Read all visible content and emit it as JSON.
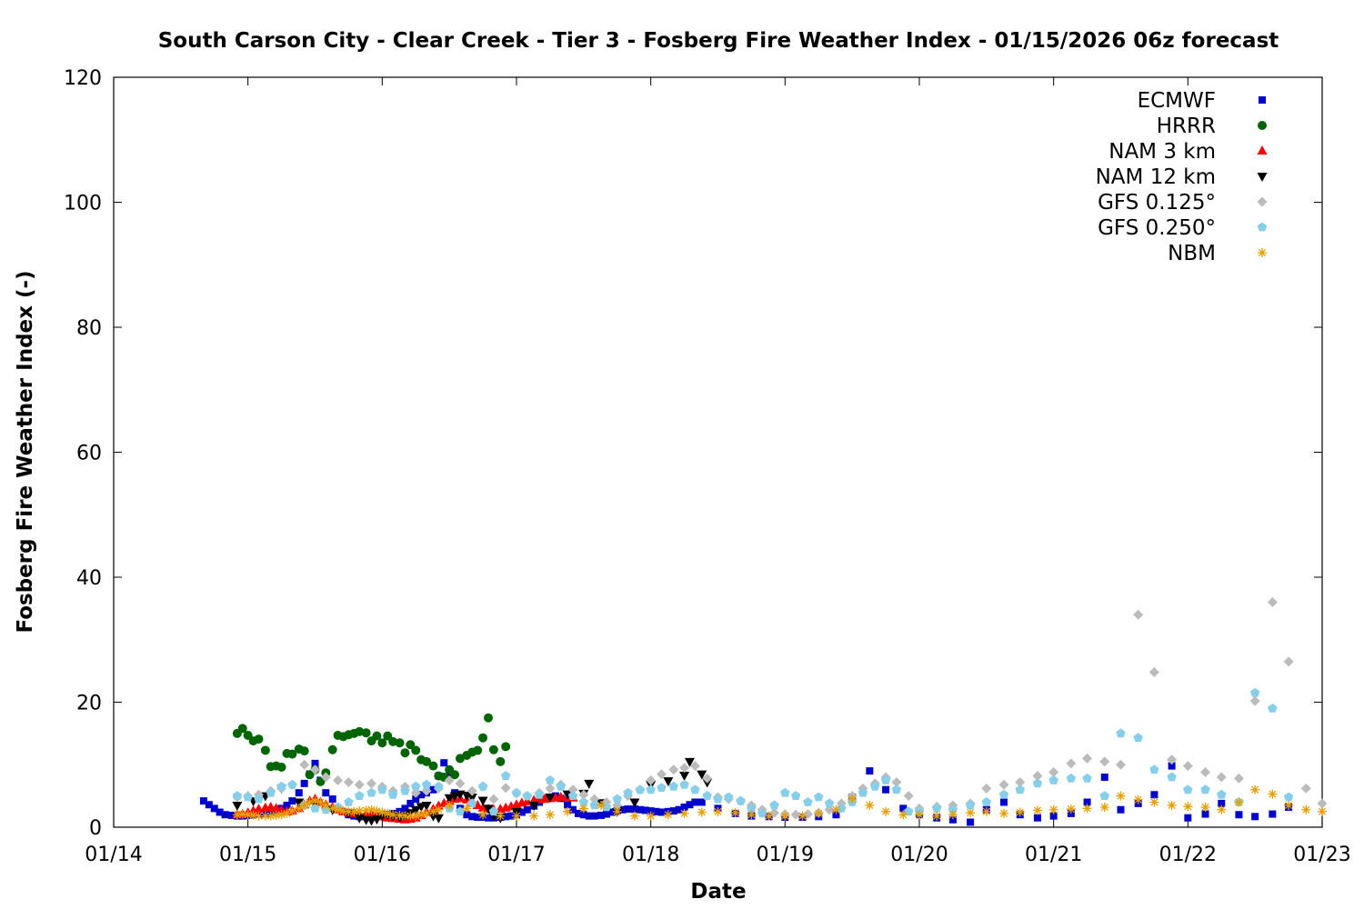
{
  "chart_data": {
    "type": "scatter",
    "title": "South Carson City - Clear Creek - Tier 3 - Fosberg Fire Weather Index - 01/15/2026 06z forecast",
    "xlabel": "Date",
    "ylabel": "Fosberg Fire Weather Index (-)",
    "xlim": [
      "01/14 00z",
      "01/23 00z"
    ],
    "ylim": [
      0,
      120
    ],
    "x_ticks": [
      "01/14",
      "01/15",
      "01/16",
      "01/17",
      "01/18",
      "01/19",
      "01/20",
      "01/21",
      "01/22",
      "01/23"
    ],
    "y_ticks": [
      0,
      20,
      40,
      60,
      80,
      100,
      120
    ],
    "x_unit": "day offset from 01/14 00z",
    "grid": false,
    "legend_position": "top-right",
    "series": [
      {
        "name": "ECMWF",
        "color": "#0000cc",
        "marker": "square",
        "x": [
          0.67,
          0.71,
          0.75,
          0.79,
          0.83,
          0.88,
          0.92,
          0.96,
          1.0,
          1.04,
          1.08,
          1.13,
          1.17,
          1.21,
          1.25,
          1.29,
          1.33,
          1.38,
          1.42,
          1.46,
          1.5,
          1.54,
          1.58,
          1.63,
          1.67,
          1.71,
          1.75,
          1.79,
          1.83,
          1.88,
          1.92,
          1.96,
          2.0,
          2.04,
          2.08,
          2.13,
          2.17,
          2.21,
          2.25,
          2.29,
          2.33,
          2.38,
          2.42,
          2.46,
          2.5,
          2.54,
          2.58,
          2.63,
          2.67,
          2.71,
          2.75,
          2.79,
          2.83,
          2.88,
          2.92,
          2.96,
          3.0,
          3.04,
          3.08,
          3.13,
          3.17,
          3.21,
          3.25,
          3.29,
          3.33,
          3.38,
          3.42,
          3.46,
          3.5,
          3.54,
          3.58,
          3.63,
          3.67,
          3.71,
          3.75,
          3.79,
          3.83,
          3.88,
          3.92,
          3.96,
          4.0,
          4.04,
          4.08,
          4.13,
          4.17,
          4.21,
          4.25,
          4.29,
          4.33,
          4.38,
          4.5,
          4.63,
          4.75,
          4.88,
          5.0,
          5.13,
          5.25,
          5.38,
          5.5,
          5.63,
          5.75,
          5.88,
          6.0,
          6.13,
          6.25,
          6.38,
          6.5,
          6.63,
          6.75,
          6.88,
          7.0,
          7.13,
          7.25,
          7.38,
          7.5,
          7.63,
          7.75,
          7.88,
          8.0,
          8.13,
          8.25,
          8.38,
          8.5,
          8.63,
          8.75
        ],
        "y": [
          4.2,
          3.6,
          3.0,
          2.4,
          2.0,
          1.9,
          1.8,
          1.8,
          1.9,
          2.0,
          2.1,
          2.2,
          2.4,
          2.7,
          3.0,
          3.5,
          4.2,
          5.5,
          7.0,
          8.5,
          10.2,
          7.5,
          5.5,
          4.5,
          3.0,
          2.5,
          2.0,
          1.8,
          1.7,
          1.7,
          1.7,
          1.8,
          1.9,
          2.0,
          2.2,
          2.5,
          3.0,
          3.8,
          4.5,
          5.2,
          5.5,
          6.0,
          8.2,
          10.3,
          8.5,
          5.5,
          3.0,
          2.0,
          1.7,
          1.6,
          1.6,
          1.5,
          1.5,
          1.6,
          1.7,
          1.8,
          2.0,
          2.4,
          2.8,
          3.4,
          4.0,
          4.5,
          4.8,
          5.0,
          4.6,
          3.6,
          2.8,
          2.2,
          2.0,
          1.8,
          1.8,
          1.9,
          2.1,
          2.4,
          2.6,
          2.8,
          2.9,
          2.9,
          2.8,
          2.7,
          2.6,
          2.5,
          2.4,
          2.5,
          2.6,
          2.8,
          3.2,
          3.6,
          4.0,
          4.0,
          3.0,
          2.2,
          1.8,
          1.7,
          1.6,
          1.6,
          1.7,
          2.0,
          4.8,
          9.0,
          6.0,
          3.0,
          2.0,
          1.5,
          1.2,
          0.8,
          2.8,
          4.0,
          2.0,
          1.5,
          1.8,
          2.2,
          4.0,
          8.0,
          2.8,
          3.8,
          5.2,
          9.8,
          1.5,
          2.1,
          3.8,
          2.0,
          1.7,
          2.1,
          3.2
        ]
      },
      {
        "name": "HRRR",
        "color": "#006400",
        "marker": "circle",
        "x": [
          0.92,
          0.96,
          1.0,
          1.04,
          1.08,
          1.13,
          1.17,
          1.21,
          1.25,
          1.29,
          1.33,
          1.38,
          1.42,
          1.46,
          1.5,
          1.54,
          1.58,
          1.63,
          1.67,
          1.71,
          1.75,
          1.79,
          1.83,
          1.88,
          1.92,
          1.96,
          2.0,
          2.04,
          2.08,
          2.13,
          2.17,
          2.21,
          2.25,
          2.29,
          2.33,
          2.38,
          2.42,
          2.46,
          2.5,
          2.54,
          2.58,
          2.63,
          2.67,
          2.71,
          2.75,
          2.79,
          2.83,
          2.88,
          2.92
        ],
        "y": [
          15.0,
          15.8,
          14.7,
          13.8,
          14.1,
          12.3,
          9.7,
          9.8,
          9.6,
          11.8,
          11.7,
          12.5,
          12.2,
          8.4,
          9.2,
          7.3,
          8.7,
          12.4,
          14.7,
          14.5,
          14.8,
          15.0,
          15.3,
          15.1,
          13.8,
          14.6,
          13.5,
          14.6,
          13.7,
          13.5,
          11.9,
          13.2,
          12.3,
          10.8,
          10.5,
          9.8,
          8.2,
          8.0,
          9.2,
          8.4,
          11.0,
          11.5,
          12.0,
          12.3,
          14.3,
          17.5,
          12.4,
          10.5,
          12.9
        ]
      },
      {
        "name": "NAM 3 km",
        "color": "#ff0000",
        "marker": "triangle-up",
        "x": [
          0.92,
          0.96,
          1.0,
          1.04,
          1.08,
          1.13,
          1.17,
          1.21,
          1.25,
          1.29,
          1.33,
          1.38,
          1.42,
          1.46,
          1.5,
          1.54,
          1.58,
          1.63,
          1.67,
          1.71,
          1.75,
          1.79,
          1.83,
          1.88,
          1.92,
          1.96,
          2.0,
          2.04,
          2.08,
          2.13,
          2.17,
          2.21,
          2.25,
          2.29,
          2.33,
          2.38,
          2.42,
          2.46,
          2.5,
          2.54,
          2.58,
          2.63,
          2.67,
          2.71,
          2.75,
          2.79,
          2.83,
          2.88,
          2.92,
          2.96,
          3.0,
          3.04,
          3.08,
          3.13,
          3.17,
          3.21,
          3.25,
          3.29,
          3.33,
          3.38,
          3.42
        ],
        "y": [
          2.0,
          2.1,
          2.3,
          2.6,
          2.9,
          3.1,
          3.2,
          3.0,
          2.7,
          2.5,
          2.6,
          3.0,
          3.6,
          4.2,
          4.5,
          4.0,
          3.6,
          3.2,
          2.8,
          2.5,
          2.3,
          2.2,
          2.1,
          2.1,
          2.0,
          1.9,
          1.7,
          1.5,
          1.4,
          1.3,
          1.2,
          1.3,
          1.5,
          1.9,
          2.4,
          2.9,
          3.4,
          3.8,
          4.2,
          4.5,
          4.6,
          4.4,
          4.0,
          3.5,
          3.1,
          2.9,
          2.8,
          2.9,
          3.1,
          3.3,
          3.6,
          3.9,
          4.1,
          4.3,
          4.4,
          4.5,
          4.6,
          4.7,
          4.8,
          4.8,
          4.7
        ]
      },
      {
        "name": "NAM 12 km",
        "color": "#000000",
        "marker": "triangle-down",
        "x": [
          0.92,
          1.04,
          1.13,
          1.25,
          1.38,
          1.5,
          1.63,
          1.75,
          1.83,
          1.88,
          1.92,
          1.96,
          2.0,
          2.04,
          2.08,
          2.13,
          2.17,
          2.21,
          2.25,
          2.29,
          2.33,
          2.38,
          2.42,
          2.5,
          2.54,
          2.58,
          2.63,
          2.67,
          2.75,
          2.79,
          2.83,
          2.88,
          3.0,
          3.13,
          3.25,
          3.38,
          3.5,
          3.54,
          3.63,
          3.75,
          3.88,
          4.0,
          4.13,
          4.25,
          4.29,
          4.38,
          4.42
        ],
        "y": [
          3.5,
          4.2,
          5.0,
          6.2,
          4.0,
          3.5,
          2.8,
          2.3,
          1.5,
          1.2,
          1.1,
          1.3,
          1.8,
          2.0,
          1.8,
          1.6,
          1.8,
          2.3,
          2.8,
          3.3,
          3.5,
          1.8,
          1.5,
          4.7,
          5.0,
          5.3,
          5.1,
          4.8,
          4.3,
          3.0,
          1.8,
          1.5,
          2.5,
          3.5,
          4.8,
          5.3,
          5.4,
          7.0,
          3.9,
          2.5,
          4.0,
          6.8,
          7.4,
          8.3,
          10.5,
          8.5,
          7.2
        ]
      },
      {
        "name": "GFS 0.125°",
        "color": "#bbbbbb",
        "marker": "diamond",
        "x": [
          0.92,
          1.0,
          1.08,
          1.17,
          1.25,
          1.33,
          1.42,
          1.5,
          1.58,
          1.67,
          1.75,
          1.83,
          1.92,
          2.0,
          2.08,
          2.17,
          2.25,
          2.33,
          2.42,
          2.5,
          2.58,
          2.67,
          2.75,
          2.83,
          2.92,
          3.0,
          3.08,
          3.17,
          3.25,
          3.33,
          3.42,
          3.5,
          3.58,
          3.67,
          3.75,
          3.83,
          3.92,
          4.0,
          4.08,
          4.17,
          4.25,
          4.33,
          4.42,
          4.5,
          4.58,
          4.67,
          4.75,
          4.83,
          4.92,
          5.0,
          5.08,
          5.17,
          5.25,
          5.33,
          5.42,
          5.5,
          5.58,
          5.67,
          5.75,
          5.83,
          5.92,
          6.0,
          6.13,
          6.25,
          6.38,
          6.5,
          6.63,
          6.75,
          6.88,
          7.0,
          7.13,
          7.25,
          7.38,
          7.5,
          7.63,
          7.75,
          7.88,
          8.0,
          8.13,
          8.25,
          8.38,
          8.5,
          8.63,
          8.75,
          8.88,
          9.0
        ],
        "y": [
          4.8,
          5.0,
          5.2,
          5.8,
          6.2,
          6.8,
          10.0,
          9.2,
          8.0,
          7.5,
          7.2,
          6.8,
          7.0,
          6.5,
          5.8,
          6.5,
          5.5,
          5.8,
          6.2,
          7.5,
          7.0,
          5.8,
          6.5,
          4.5,
          6.3,
          5.4,
          5.0,
          5.5,
          6.2,
          6.8,
          6.0,
          5.2,
          4.5,
          4.0,
          3.5,
          5.0,
          6.0,
          7.5,
          8.5,
          9.2,
          9.5,
          9.8,
          7.8,
          4.8,
          4.5,
          4.2,
          3.5,
          2.8,
          2.3,
          2.1,
          2.0,
          2.1,
          2.3,
          2.8,
          3.8,
          5.0,
          6.2,
          7.0,
          8.0,
          7.2,
          5.0,
          3.0,
          3.3,
          3.5,
          3.8,
          6.2,
          6.8,
          7.2,
          8.2,
          8.8,
          10.2,
          11.0,
          10.5,
          10.0,
          34.0,
          24.8,
          10.8,
          9.8,
          8.8,
          8.0,
          7.8,
          20.2,
          36.0,
          26.5,
          6.2,
          3.8
        ]
      },
      {
        "name": "GFS 0.250°",
        "color": "#87ceeb",
        "marker": "pentagon",
        "x": [
          0.92,
          1.0,
          1.08,
          1.17,
          1.25,
          1.33,
          1.42,
          1.5,
          1.58,
          1.67,
          1.75,
          1.83,
          1.92,
          2.0,
          2.08,
          2.17,
          2.25,
          2.33,
          2.42,
          2.5,
          2.58,
          2.67,
          2.75,
          2.83,
          2.92,
          3.0,
          3.08,
          3.17,
          3.25,
          3.33,
          3.42,
          3.5,
          3.58,
          3.67,
          3.75,
          3.83,
          3.92,
          4.0,
          4.08,
          4.17,
          4.25,
          4.33,
          4.42,
          4.5,
          4.58,
          4.67,
          4.75,
          4.83,
          4.92,
          5.0,
          5.08,
          5.17,
          5.25,
          5.33,
          5.42,
          5.5,
          5.58,
          5.67,
          5.75,
          5.83,
          5.92,
          6.0,
          6.13,
          6.25,
          6.38,
          6.5,
          6.63,
          6.75,
          6.88,
          7.0,
          7.13,
          7.25,
          7.38,
          7.5,
          7.63,
          7.75,
          7.88,
          8.0,
          8.13,
          8.25,
          8.38,
          8.5,
          8.63,
          8.75
        ],
        "y": [
          5.0,
          4.8,
          4.5,
          5.5,
          6.5,
          6.8,
          3.5,
          3.0,
          2.8,
          3.2,
          4.0,
          5.0,
          5.5,
          6.0,
          5.2,
          5.8,
          6.5,
          6.8,
          6.5,
          3.0,
          2.5,
          3.8,
          6.5,
          2.5,
          8.2,
          5.5,
          5.0,
          5.2,
          7.5,
          6.5,
          5.0,
          4.0,
          3.5,
          3.2,
          4.5,
          5.5,
          6.0,
          6.0,
          6.3,
          6.5,
          6.8,
          6.0,
          5.0,
          4.5,
          4.8,
          4.2,
          3.0,
          2.2,
          3.5,
          5.5,
          5.0,
          4.0,
          4.8,
          3.8,
          3.0,
          4.0,
          5.5,
          6.5,
          7.5,
          6.0,
          2.5,
          2.5,
          3.0,
          2.8,
          3.5,
          4.0,
          5.2,
          6.0,
          7.0,
          7.5,
          7.8,
          7.8,
          5.0,
          15.0,
          14.3,
          9.2,
          8.0,
          6.0,
          6.0,
          5.2,
          4.0,
          21.5,
          19.0,
          4.8
        ]
      },
      {
        "name": "NBM",
        "color": "#e69f00",
        "marker": "asterisk",
        "x": [
          0.92,
          0.96,
          1.0,
          1.04,
          1.08,
          1.13,
          1.17,
          1.21,
          1.25,
          1.29,
          1.33,
          1.38,
          1.42,
          1.46,
          1.5,
          1.54,
          1.58,
          1.63,
          1.67,
          1.71,
          1.75,
          1.79,
          1.83,
          1.88,
          1.92,
          1.96,
          2.0,
          2.04,
          2.08,
          2.13,
          2.17,
          2.21,
          2.25,
          2.29,
          2.33,
          2.38,
          2.42,
          2.5,
          2.63,
          2.75,
          2.88,
          3.0,
          3.13,
          3.25,
          3.38,
          3.5,
          3.63,
          3.75,
          3.88,
          4.0,
          4.13,
          4.25,
          4.38,
          4.5,
          4.63,
          4.75,
          4.88,
          5.0,
          5.13,
          5.25,
          5.38,
          5.5,
          5.63,
          5.75,
          5.88,
          6.0,
          6.13,
          6.25,
          6.38,
          6.5,
          6.63,
          6.75,
          6.88,
          7.0,
          7.13,
          7.25,
          7.38,
          7.5,
          7.63,
          7.75,
          7.88,
          8.0,
          8.13,
          8.25,
          8.38,
          8.5,
          8.63,
          8.75,
          8.88,
          9.0
        ],
        "y": [
          2.0,
          2.1,
          2.0,
          1.9,
          1.8,
          1.8,
          1.8,
          1.9,
          2.0,
          2.2,
          2.6,
          3.0,
          3.5,
          4.0,
          4.2,
          4.0,
          3.5,
          3.0,
          2.8,
          2.6,
          2.5,
          2.5,
          2.6,
          2.7,
          2.8,
          2.6,
          2.4,
          2.2,
          2.0,
          1.9,
          1.8,
          1.8,
          1.8,
          2.0,
          2.2,
          2.5,
          2.8,
          3.5,
          3.0,
          2.0,
          1.8,
          1.8,
          1.8,
          2.0,
          2.5,
          3.0,
          3.5,
          2.5,
          1.8,
          1.8,
          2.0,
          2.2,
          2.4,
          2.5,
          2.3,
          2.0,
          1.8,
          1.8,
          1.8,
          2.2,
          2.8,
          4.5,
          3.5,
          2.5,
          2.0,
          2.0,
          1.8,
          2.0,
          2.3,
          2.5,
          2.2,
          2.4,
          2.7,
          2.8,
          2.9,
          3.0,
          3.2,
          5.0,
          4.4,
          4.0,
          3.5,
          3.3,
          3.2,
          2.8,
          4.0,
          6.0,
          5.3,
          3.5,
          2.8,
          2.5
        ]
      }
    ]
  }
}
